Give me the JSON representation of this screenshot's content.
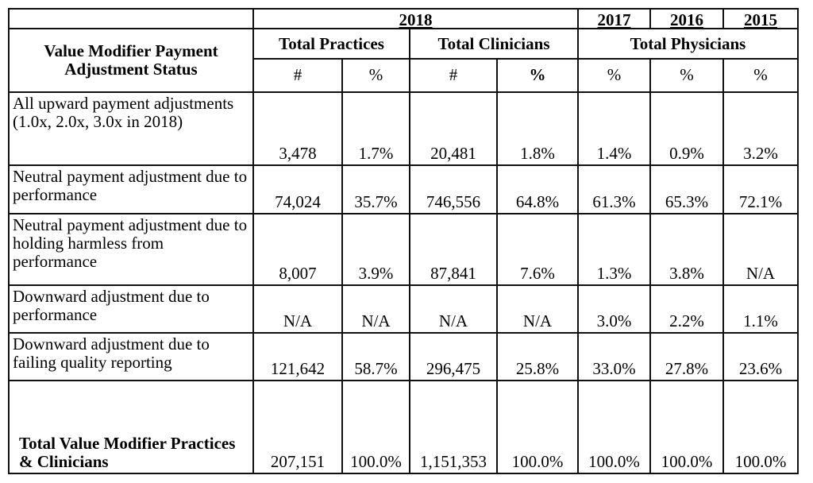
{
  "header": {
    "row_label": "Value Modifier Payment Adjustment Status",
    "year_2018": "2018",
    "year_2017": "2017",
    "year_2016": "2016",
    "year_2015": "2015",
    "group_practices": "Total Practices",
    "group_clinicians": "Total Clinicians",
    "group_physicians": "Total Physicians",
    "sub": [
      "#",
      "%",
      "#",
      "%",
      "%",
      "%",
      "%"
    ]
  },
  "rows": [
    {
      "label": "All upward payment adjustments (1.0x, 2.0x, 3.0x in 2018)",
      "values": [
        "3,478",
        "1.7%",
        "20,481",
        "1.8%",
        "1.4%",
        "0.9%",
        "3.2%"
      ]
    },
    {
      "label": "Neutral payment adjustment due to performance",
      "values": [
        "74,024",
        "35.7%",
        "746,556",
        "64.8%",
        "61.3%",
        "65.3%",
        "72.1%"
      ]
    },
    {
      "label": "Neutral payment adjustment due to holding harmless from performance",
      "values": [
        "8,007",
        "3.9%",
        "87,841",
        "7.6%",
        "1.3%",
        "3.8%",
        "N/A"
      ]
    },
    {
      "label": "Downward adjustment due to performance",
      "values": [
        "N/A",
        "N/A",
        "N/A",
        "N/A",
        "3.0%",
        "2.2%",
        "1.1%"
      ]
    },
    {
      "label": "Downward adjustment due to failing quality reporting",
      "values": [
        "121,642",
        "58.7%",
        "296,475",
        "25.8%",
        "33.0%",
        "27.8%",
        "23.6%"
      ]
    },
    {
      "label": "Total Value Modifier Practices & Clinicians",
      "values": [
        "207,151",
        "100.0%",
        "1,151,353",
        "100.0%",
        "100.0%",
        "100.0%",
        "100.0%"
      ]
    }
  ]
}
